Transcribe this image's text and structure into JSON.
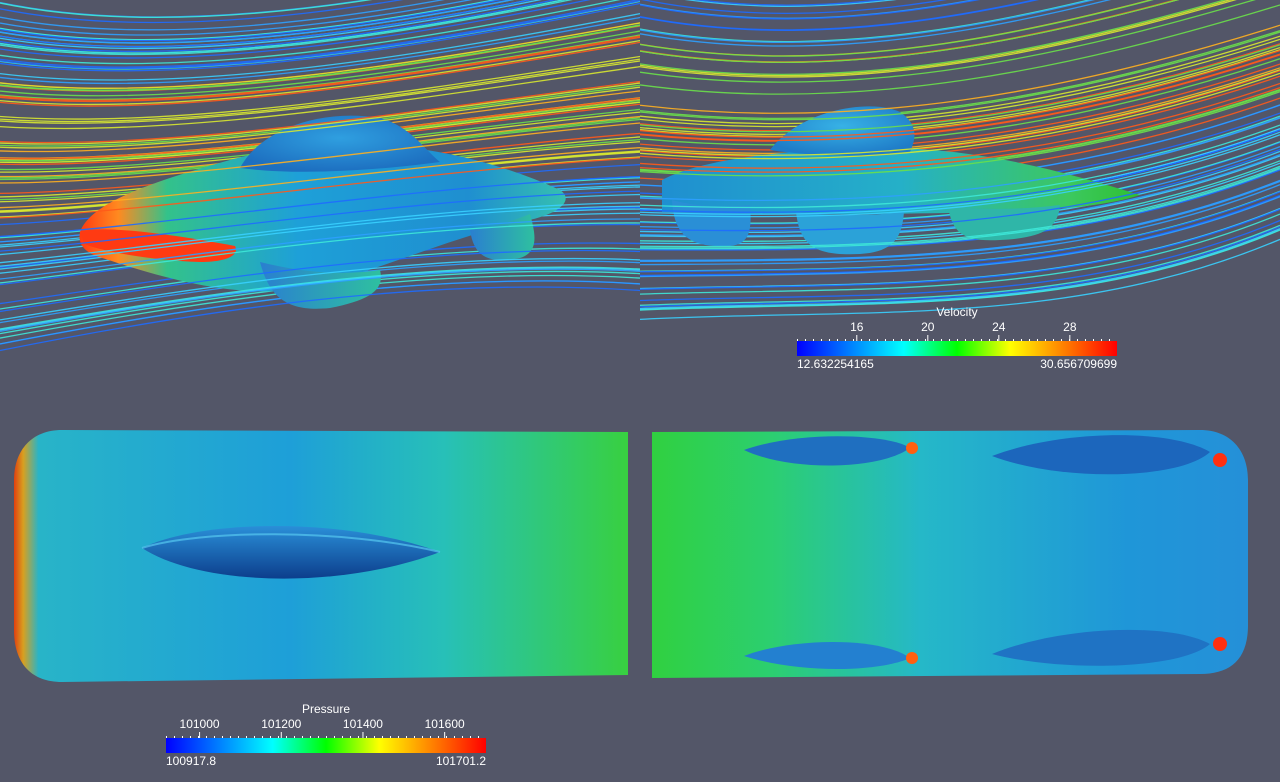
{
  "colors": {
    "background": "#535668",
    "jet": [
      "#0000ff",
      "#0080ff",
      "#00ffff",
      "#00ff00",
      "#ffff00",
      "#ff8000",
      "#ff0000"
    ],
    "streamline_colors": [
      "#1e6bff",
      "#2ea0ff",
      "#39d0ff",
      "#3ee8d8",
      "#6ae04a",
      "#d8e830",
      "#ffb020",
      "#ff5a1a"
    ]
  },
  "velocity_legend": {
    "title": "Velocity",
    "ticks": [
      "16",
      "20",
      "24",
      "28"
    ],
    "tick_values": [
      16,
      20,
      24,
      28
    ],
    "range": [
      12.632254165,
      30.656709699
    ],
    "min_label": "12.632254165",
    "max_label": "30.656709699"
  },
  "pressure_legend": {
    "title": "Pressure",
    "ticks": [
      "101000",
      "101200",
      "101400",
      "101600"
    ],
    "tick_values": [
      101000,
      101200,
      101400,
      101600
    ],
    "range": [
      100917.8,
      101701.2
    ],
    "min_label": "100917.8",
    "max_label": "101701.2"
  }
}
